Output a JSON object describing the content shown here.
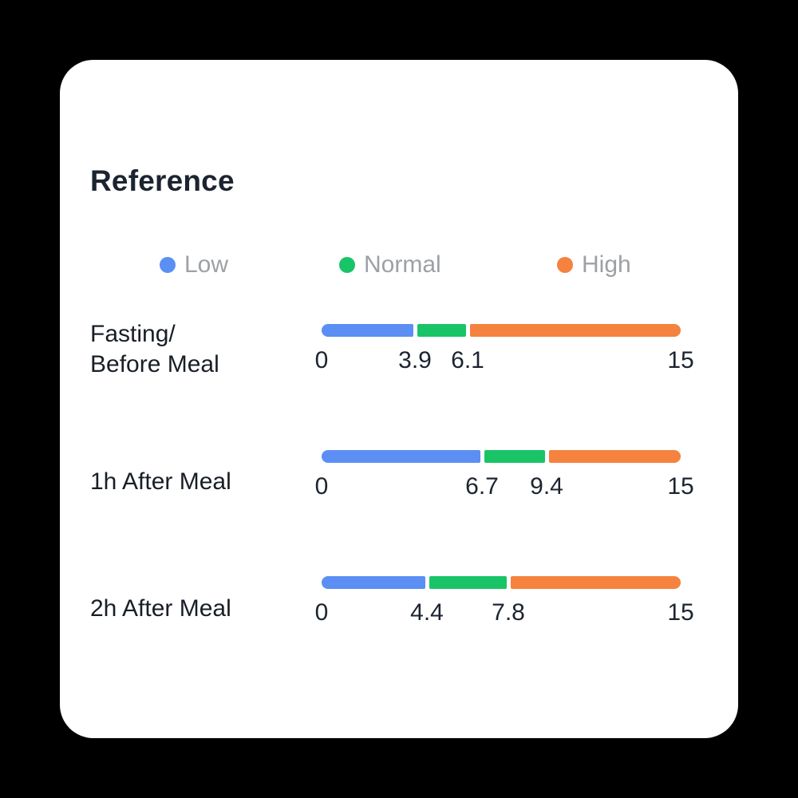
{
  "page": {
    "background_color": "#000000",
    "card_background_color": "#FFFFFF"
  },
  "card": {
    "title": "Reference"
  },
  "legend": {
    "items": [
      {
        "name": "low",
        "label": "Low",
        "color": "#5B8FF3"
      },
      {
        "name": "normal",
        "label": "Normal",
        "color": "#19C467"
      },
      {
        "name": "high",
        "label": "High",
        "color": "#F5823E"
      }
    ]
  },
  "chart_data": {
    "type": "bar",
    "variant": "segmented-range-bars",
    "title": "Reference",
    "xlim": [
      0,
      15
    ],
    "legend": [
      "Low",
      "Normal",
      "High"
    ],
    "legend_position": "top",
    "rows": [
      {
        "label": "Fasting/\nBefore Meal",
        "ticks": [
          0,
          3.9,
          6.1,
          15
        ],
        "segments": [
          {
            "level": "low",
            "from": 0,
            "to": 3.9
          },
          {
            "level": "normal",
            "from": 3.9,
            "to": 6.1
          },
          {
            "level": "high",
            "from": 6.1,
            "to": 15
          }
        ]
      },
      {
        "label": "1h After Meal",
        "ticks": [
          0,
          6.7,
          9.4,
          15
        ],
        "segments": [
          {
            "level": "low",
            "from": 0,
            "to": 6.7
          },
          {
            "level": "normal",
            "from": 6.7,
            "to": 9.4
          },
          {
            "level": "high",
            "from": 9.4,
            "to": 15
          }
        ]
      },
      {
        "label": "2h After Meal",
        "ticks": [
          0,
          4.4,
          7.8,
          15
        ],
        "segments": [
          {
            "level": "low",
            "from": 0,
            "to": 4.4
          },
          {
            "level": "normal",
            "from": 4.4,
            "to": 7.8
          },
          {
            "level": "high",
            "from": 7.8,
            "to": 15
          }
        ]
      }
    ]
  }
}
